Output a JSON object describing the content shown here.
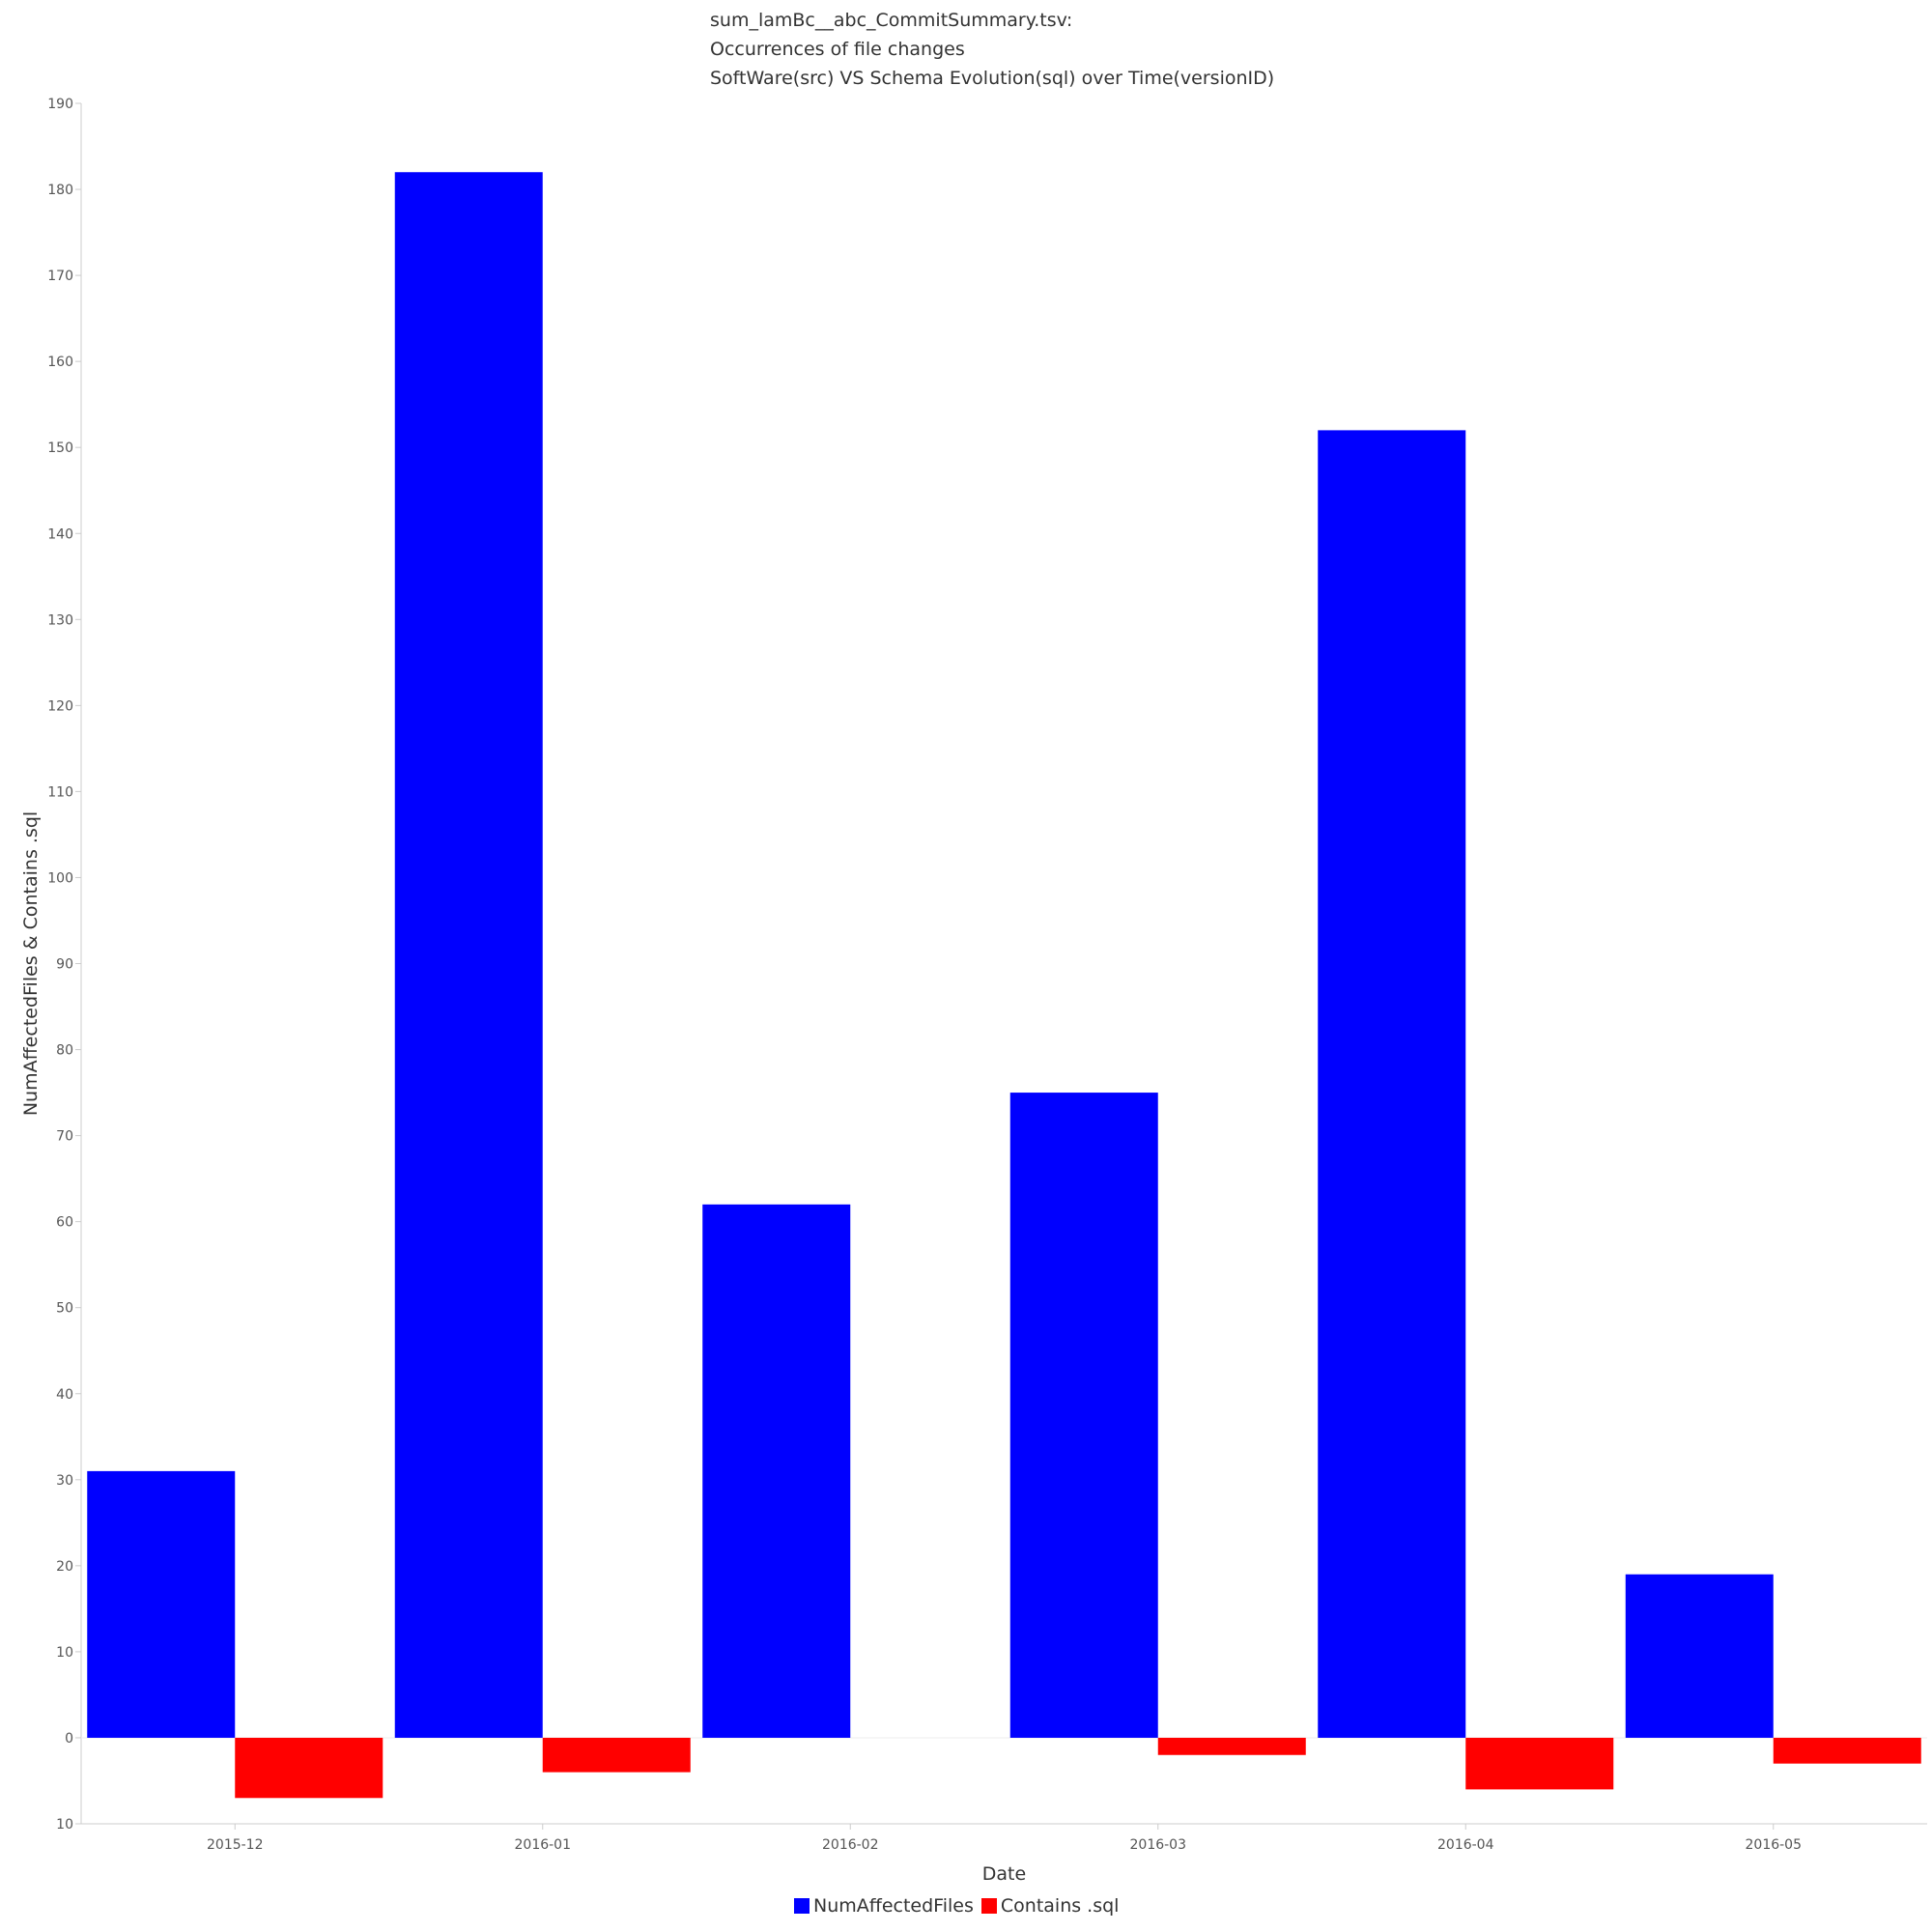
{
  "chart_data": {
    "type": "bar",
    "title_lines": [
      "sum_lamBc__abc_CommitSummary.tsv:",
      "Occurrences of file changes",
      "SoftWare(src) VS Schema Evolution(sql) over Time(versionID)"
    ],
    "xlabel": "Date",
    "ylabel": "NumAffectedFiles & Contains .sql",
    "categories": [
      "2015-12",
      "2016-01",
      "2016-02",
      "2016-03",
      "2016-04",
      "2016-05"
    ],
    "series": [
      {
        "name": "NumAffectedFiles",
        "color": "#0000ff",
        "values": [
          31,
          182,
          62,
          75,
          152,
          19
        ]
      },
      {
        "name": "Contains .sql",
        "color": "#ff0000",
        "values": [
          -7,
          -4,
          0,
          -2,
          -6,
          -3
        ]
      }
    ],
    "ylim": [
      -10,
      190
    ],
    "yticks": [
      190,
      180,
      170,
      160,
      150,
      140,
      130,
      120,
      110,
      100,
      90,
      80,
      70,
      60,
      50,
      40,
      30,
      20,
      10,
      0,
      -10
    ],
    "ytick_labels": [
      "190",
      "180",
      "170",
      "160",
      "150",
      "140",
      "130",
      "120",
      "110",
      "100",
      "90",
      "80",
      "70",
      "60",
      "50",
      "40",
      "30",
      "20",
      "10",
      "0",
      "10"
    ],
    "grid": false,
    "legend_position": "bottom-center"
  }
}
